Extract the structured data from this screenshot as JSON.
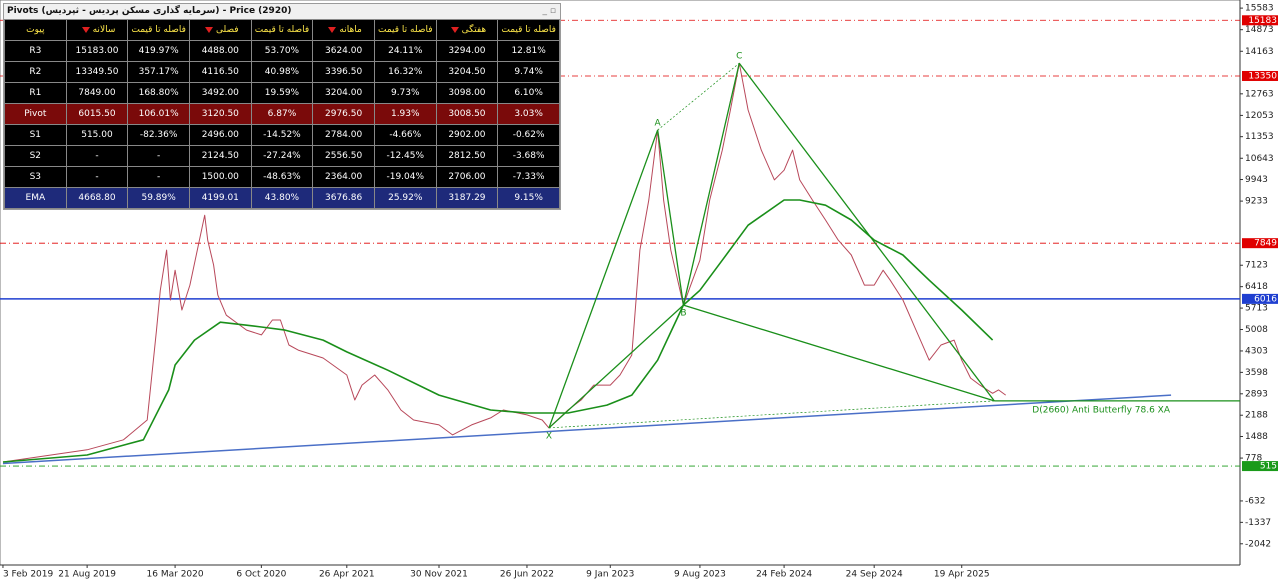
{
  "chart_data": {
    "type": "line",
    "xlim": [
      "27 Jan 2019",
      "6 Feb 2027"
    ],
    "xticks": [
      "3 Feb 2019",
      "21 Aug 2019",
      "16 Mar 2020",
      "6 Oct 2020",
      "26 Apr 2021",
      "30 Nov 2021",
      "26 Jun 2022",
      "9 Jan 2023",
      "9 Aug 2023",
      "24 Feb 2024",
      "24 Sep 2024",
      "19 Apr 2025"
    ],
    "ylim": [
      -2740,
      15850
    ],
    "yticks": [
      15583,
      14873,
      14163,
      12763,
      12053,
      11353,
      10643,
      9943,
      9233,
      7123,
      6418,
      5713,
      5008,
      4303,
      3598,
      2893,
      2188,
      1488,
      778,
      -632,
      -1337,
      -2042
    ],
    "series": [
      {
        "color": "#b8485a",
        "x": [
          "3 Feb 2019",
          "21 Aug 2019",
          "15 Nov 2019",
          "10 Jan 2020",
          "1 Feb 2020",
          "10 Feb 2020",
          "25 Feb 2020",
          "5 Mar 2020",
          "16 Mar 2020",
          "1 Apr 2020",
          "20 Apr 2020",
          "25 May 2020",
          "1 Jun 2020",
          "15 Jun 2020",
          "25 Jun 2020",
          "15 Jul 2020",
          "1 Sep 2020",
          "6 Oct 2020",
          "1 Nov 2020",
          "20 Nov 2020",
          "10 Dec 2020",
          "1 Jan 2021",
          "1 Mar 2021",
          "26 Apr 2021",
          "15 May 2021",
          "1 Jun 2021",
          "1 Jul 2021",
          "1 Aug 2021",
          "1 Sep 2021",
          "1 Oct 2021",
          "30 Nov 2021",
          "1 Jan 2022",
          "15 Feb 2022",
          "1 Apr 2022",
          "1 May 2022",
          "26 Jun 2022",
          "1 Aug 2022",
          "17 Aug 2022",
          "1 Oct 2022",
          "1 Nov 2022",
          "1 Dec 2022",
          "9 Jan 2023",
          "1 Feb 2023",
          "1 Mar 2023",
          "20 Mar 2023",
          "10 Apr 2023",
          "1 May 2023",
          "15 May 2023",
          "1 Jun 2023",
          "1 Jul 2023",
          "9 Aug 2023",
          "1 Sep 2023",
          "1 Oct 2023",
          "20 Oct 2023",
          "10 Nov 2023",
          "1 Dec 2023",
          "1 Jan 2024",
          "1 Feb 2024",
          "24 Feb 2024",
          "15 Mar 2024",
          "1 Apr 2024",
          "1 May 2024",
          "1 Jun 2024",
          "1 Jul 2024",
          "1 Aug 2024",
          "1 Sep 2024",
          "24 Sep 2024",
          "15 Oct 2024",
          "1 Nov 2024",
          "1 Dec 2024",
          "1 Jan 2025",
          "1 Feb 2025",
          "1 Mar 2025",
          "1 Apr 2025",
          "19 Apr 2025",
          "10 May 2025",
          "1 Jun 2025",
          "1 Jul 2025",
          "15 Jul 2025",
          "1 Aug 2025"
        ],
        "values": [
          650,
          1050,
          1380,
          2030,
          4990,
          6300,
          7620,
          5980,
          6960,
          5650,
          6470,
          8770,
          7950,
          7130,
          6140,
          5480,
          4990,
          4830,
          5320,
          5320,
          4500,
          4330,
          4070,
          3510,
          2690,
          3180,
          3510,
          3020,
          2360,
          2030,
          1870,
          1540,
          1870,
          2100,
          2360,
          2200,
          2030,
          1770,
          2360,
          2690,
          3180,
          3180,
          3510,
          4170,
          7620,
          9270,
          11570,
          9270,
          7620,
          5810,
          7290,
          9270,
          10910,
          12230,
          13770,
          12230,
          10910,
          9930,
          10250,
          10910,
          9930,
          9270,
          8610,
          7950,
          7460,
          6470,
          6470,
          6960,
          6630,
          5980,
          4990,
          4000,
          4500,
          4660,
          4000,
          3410,
          3180,
          2910,
          3020,
          2850
        ]
      },
      {
        "color": "#1a8f1a",
        "x": [
          "3 Feb 2019",
          "21 Aug 2019",
          "1 Jan 2020",
          "1 Mar 2020",
          "16 Mar 2020",
          "1 May 2020",
          "1 Jul 2020",
          "1 Sep 2020",
          "6 Oct 2020",
          "1 Dec 2020",
          "1 Mar 2021",
          "26 Apr 2021",
          "1 Aug 2021",
          "30 Nov 2021",
          "1 Apr 2022",
          "26 Jun 2022",
          "1 Oct 2022",
          "1 Jan 2023",
          "1 Mar 2023",
          "1 May 2023",
          "1 Jul 2023",
          "9 Aug 2023",
          "1 Oct 2023",
          "1 Dec 2023",
          "24 Feb 2024",
          "1 Apr 2024",
          "1 Jun 2024",
          "1 Aug 2024",
          "24 Sep 2024",
          "1 Dec 2024",
          "1 Feb 2025",
          "19 Apr 2025",
          "1 Jul 2025"
        ],
        "values": [
          650,
          880,
          1380,
          3020,
          3840,
          4660,
          5250,
          5150,
          5090,
          4990,
          4660,
          4270,
          3670,
          2850,
          2360,
          2260,
          2260,
          2520,
          2850,
          4000,
          5810,
          6300,
          7290,
          8440,
          9270,
          9270,
          9100,
          8610,
          7950,
          7460,
          6630,
          5650,
          4660
        ]
      }
    ],
    "levels": [
      {
        "value": 15183,
        "color": "#e00000"
      },
      {
        "value": 13350,
        "color": "#e00000"
      },
      {
        "value": 7849,
        "color": "#e00000"
      },
      {
        "value": 6016,
        "color": "#1f3fd0"
      },
      {
        "value": 515,
        "color": "#1a9a1a"
      }
    ],
    "trendline": {
      "color": "#4a6fc7",
      "x": [
        "3 Feb 2019",
        "27 Aug 2026"
      ],
      "values": [
        600,
        2850
      ]
    },
    "pattern": {
      "color": "#1a8f1a",
      "points": [
        {
          "label": "X",
          "x": "17 Aug 2022",
          "value": 1770
        },
        {
          "label": "A",
          "x": "1 May 2023",
          "value": 11570
        },
        {
          "label": "B",
          "x": "1 Jul 2023",
          "value": 5810
        },
        {
          "label": "C",
          "x": "10 Nov 2023",
          "value": 13770
        },
        {
          "x": "5 Jul 2025",
          "value": 2660
        }
      ],
      "note": "D(2660) Anti Butterfly 78.6 XA"
    }
  },
  "pivot_table": {
    "title": "Pivots (سرمایه گذاری مسکن پردیس - ثپردیس) - Price (2920)",
    "header": [
      "پیوت",
      "سالانه",
      "فاصله تا قیمت",
      "فصلی",
      "فاصله تا قیمت",
      "ماهانه",
      "فاصله تا قیمت",
      "هفتگی",
      "فاصله تا قیمت"
    ],
    "rows": [
      [
        "R3",
        "15183.00",
        "419.97%",
        "4488.00",
        "53.70%",
        "3624.00",
        "24.11%",
        "3294.00",
        "12.81%"
      ],
      [
        "R2",
        "13349.50",
        "357.17%",
        "4116.50",
        "40.98%",
        "3396.50",
        "16.32%",
        "3204.50",
        "9.74%"
      ],
      [
        "R1",
        "7849.00",
        "168.80%",
        "3492.00",
        "19.59%",
        "3204.00",
        "9.73%",
        "3098.00",
        "6.10%"
      ],
      [
        "Pivot",
        "6015.50",
        "106.01%",
        "3120.50",
        "6.87%",
        "2976.50",
        "1.93%",
        "3008.50",
        "3.03%"
      ],
      [
        "S1",
        "515.00",
        "-82.36%",
        "2496.00",
        "-14.52%",
        "2784.00",
        "-4.66%",
        "2902.00",
        "-0.62%"
      ],
      [
        "S2",
        "-",
        "-",
        "2124.50",
        "-27.24%",
        "2556.50",
        "-12.45%",
        "2812.50",
        "-3.68%"
      ],
      [
        "S3",
        "-",
        "-",
        "1500.00",
        "-48.63%",
        "2364.00",
        "-19.04%",
        "2706.00",
        "-7.33%"
      ],
      [
        "EMA",
        "4668.80",
        "59.89%",
        "4199.01",
        "43.80%",
        "3676.86",
        "25.92%",
        "3187.29",
        "9.15%"
      ]
    ]
  }
}
